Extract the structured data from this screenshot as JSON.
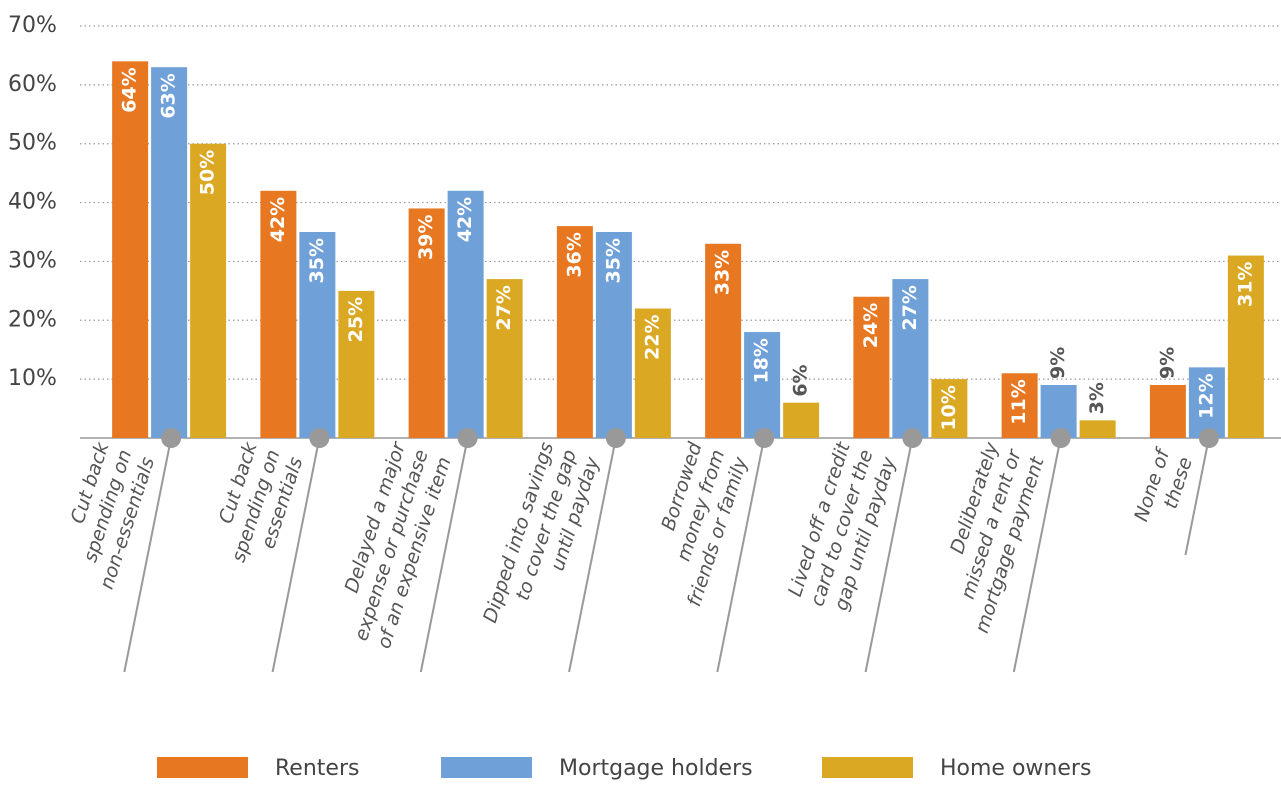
{
  "chart_data": {
    "type": "bar",
    "categories": [
      [
        "Cut back",
        "spending on",
        "non-essentials"
      ],
      [
        "Cut back",
        "spending on",
        "essentials"
      ],
      [
        "Delayed a major",
        "expense or purchase",
        "of an expensive item"
      ],
      [
        "Dipped into savings",
        "to cover the gap",
        "until payday"
      ],
      [
        "Borrowed",
        "money from",
        "friends or family"
      ],
      [
        "Lived off a credit",
        "card to cover the",
        "gap until payday"
      ],
      [
        "Deliberately",
        "missed a rent or",
        "mortgage payment"
      ],
      [
        "None of",
        "these"
      ]
    ],
    "series": [
      {
        "name": "Renters",
        "color": "#e87722",
        "values": [
          64,
          42,
          39,
          36,
          33,
          24,
          11,
          9
        ],
        "value_labels": [
          "64%",
          "42%",
          "39%",
          "36%",
          "33%",
          "24%",
          "11%",
          "9%"
        ]
      },
      {
        "name": "Mortgage holders",
        "color": "#6fa0d8",
        "values": [
          63,
          35,
          42,
          35,
          18,
          27,
          9,
          12
        ],
        "value_labels": [
          "63%",
          "35%",
          "42%",
          "35%",
          "18%",
          "27%",
          "9%",
          "12%"
        ]
      },
      {
        "name": "Home owners",
        "color": "#dba823",
        "values": [
          50,
          25,
          27,
          22,
          6,
          10,
          3,
          31
        ],
        "value_labels": [
          "50%",
          "25%",
          "27%",
          "22%",
          "6%",
          "10%",
          "3%",
          "31%"
        ]
      }
    ],
    "ylim": [
      0,
      70
    ],
    "yticks": [
      {
        "value": 10,
        "label": "10%"
      },
      {
        "value": 20,
        "label": "20%"
      },
      {
        "value": 30,
        "label": "30%"
      },
      {
        "value": 40,
        "label": "40%"
      },
      {
        "value": 50,
        "label": "50%"
      },
      {
        "value": 60,
        "label": "60%"
      },
      {
        "value": 70,
        "label": "70%"
      }
    ],
    "grid": true
  }
}
